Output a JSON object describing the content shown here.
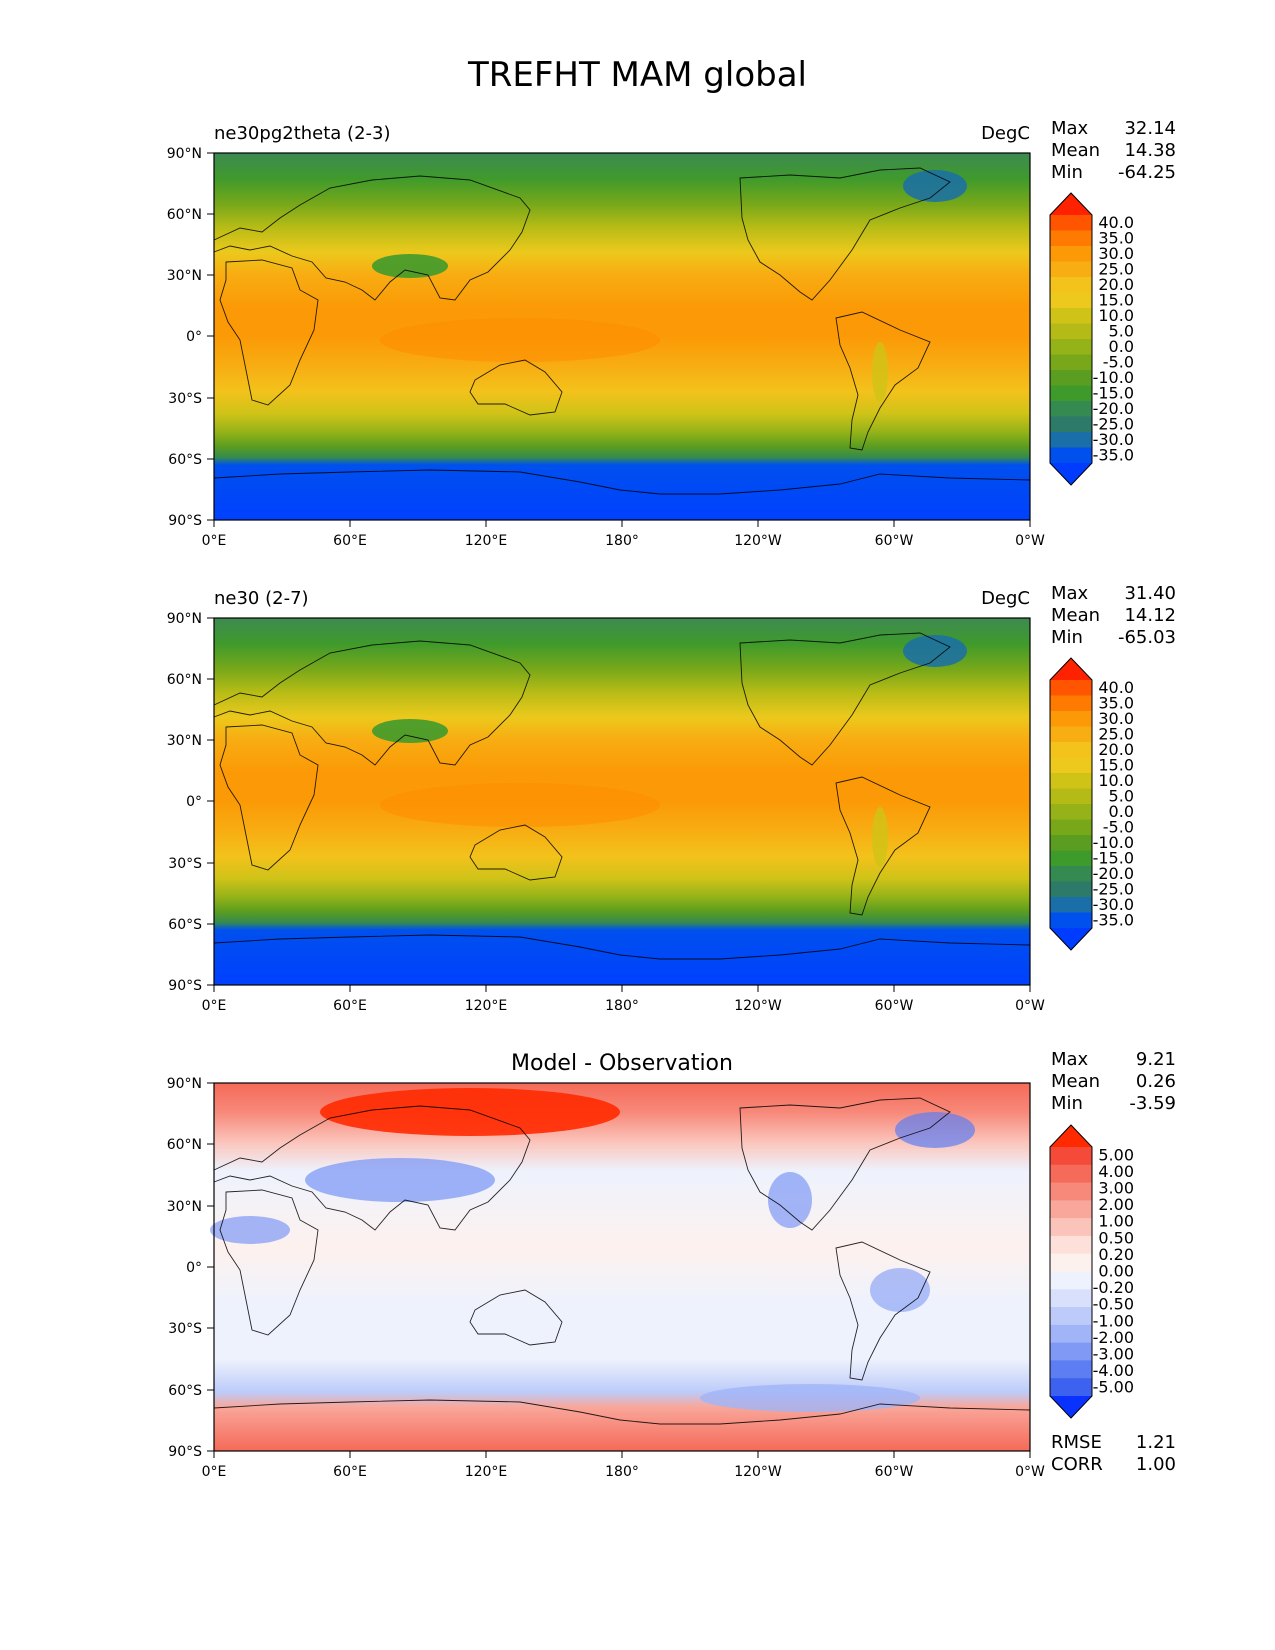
{
  "figure": {
    "title": "TREFHT MAM global"
  },
  "lat_ticks": [
    "90°N",
    "60°N",
    "30°N",
    "0°",
    "30°S",
    "60°S",
    "90°S"
  ],
  "lon_ticks": [
    "0°E",
    "60°E",
    "120°E",
    "180°",
    "120°W",
    "60°W",
    "0°W"
  ],
  "panels": [
    {
      "left_title": "ne30pg2theta (2-3)",
      "center_title": "",
      "units": "DegC",
      "stats": [
        {
          "label": "Max",
          "value": "32.14"
        },
        {
          "label": "Mean",
          "value": "14.38"
        },
        {
          "label": "Min",
          "value": "-64.25"
        }
      ],
      "colorbar_levels": [
        "40.0",
        "35.0",
        "30.0",
        "25.0",
        "20.0",
        "15.0",
        "10.0",
        "5.0",
        "0.0",
        "-5.0",
        "-10.0",
        "-15.0",
        "-20.0",
        "-25.0",
        "-30.0",
        "-35.0"
      ],
      "colorbar_colors": [
        "#ff2200",
        "#ff5500",
        "#ff7a00",
        "#fb9a06",
        "#f8ad12",
        "#f3c21b",
        "#ecc91c",
        "#cfc318",
        "#b5bb16",
        "#95b318",
        "#78a81a",
        "#5b9d20",
        "#3f9a2c",
        "#348a50",
        "#2e7a68",
        "#1a6fa8",
        "#0050ee",
        "#003cff"
      ],
      "footer": []
    },
    {
      "left_title": "ne30 (2-7)",
      "center_title": "",
      "units": "DegC",
      "stats": [
        {
          "label": "Max",
          "value": "31.40"
        },
        {
          "label": "Mean",
          "value": "14.12"
        },
        {
          "label": "Min",
          "value": "-65.03"
        }
      ],
      "colorbar_levels": [
        "40.0",
        "35.0",
        "30.0",
        "25.0",
        "20.0",
        "15.0",
        "10.0",
        "5.0",
        "0.0",
        "-5.0",
        "-10.0",
        "-15.0",
        "-20.0",
        "-25.0",
        "-30.0",
        "-35.0"
      ],
      "colorbar_colors": [
        "#ff2200",
        "#ff5500",
        "#ff7a00",
        "#fb9a06",
        "#f8ad12",
        "#f3c21b",
        "#ecc91c",
        "#cfc318",
        "#b5bb16",
        "#95b318",
        "#78a81a",
        "#5b9d20",
        "#3f9a2c",
        "#348a50",
        "#2e7a68",
        "#1a6fa8",
        "#0050ee",
        "#003cff"
      ],
      "footer": []
    },
    {
      "left_title": "",
      "center_title": "Model - Observation",
      "units": "",
      "stats": [
        {
          "label": "Max",
          "value": "9.21"
        },
        {
          "label": "Mean",
          "value": "0.26"
        },
        {
          "label": "Min",
          "value": "-3.59"
        }
      ],
      "colorbar_levels": [
        "5.00",
        "4.00",
        "3.00",
        "2.00",
        "1.00",
        "0.50",
        "0.20",
        "0.00",
        "-0.20",
        "-0.50",
        "-1.00",
        "-2.00",
        "-3.00",
        "-4.00",
        "-5.00"
      ],
      "colorbar_colors": [
        "#ff2a00",
        "#f54a3a",
        "#f56a58",
        "#f7897a",
        "#f9a79b",
        "#fbc4bb",
        "#fde0da",
        "#fdf1ee",
        "#eef2fd",
        "#d8e0fb",
        "#bccbf9",
        "#a0b4f7",
        "#7f99f5",
        "#5d7ef2",
        "#3e62f0",
        "#0a32ff"
      ],
      "footer": [
        {
          "label": "RMSE",
          "value": "1.21"
        },
        {
          "label": "CORR",
          "value": "1.00"
        }
      ]
    }
  ]
}
